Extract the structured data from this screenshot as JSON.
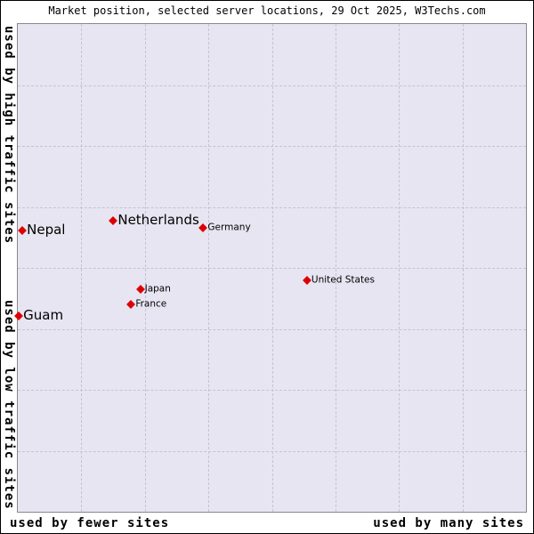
{
  "colors": {
    "plot_bg": "#e8e5f2",
    "grid": "#c6c2d4",
    "marker": "#dd0000",
    "border": "#888888"
  },
  "chart_data": {
    "type": "scatter",
    "title": "Market position, selected server locations, 29 Oct 2025, W3Techs.com",
    "x_axis": {
      "left_label": "used by fewer sites",
      "right_label": "used by many sites"
    },
    "y_axis": {
      "top_label": "used by high traffic sites",
      "bottom_label": "used by low traffic sites"
    },
    "grid": {
      "v_lines": 7,
      "h_lines": 7,
      "style": "dashed"
    },
    "units": "x_pct/y_pct are percent of plot area measured from top-left; axes are qualitative (no numeric scale shown)",
    "points": [
      {
        "label": "Nepal",
        "x_pct": 0.9,
        "y_pct": 42.4,
        "label_size": "large"
      },
      {
        "label": "Netherlands",
        "x_pct": 18.8,
        "y_pct": 40.4,
        "label_size": "large"
      },
      {
        "label": "Germany",
        "x_pct": 36.5,
        "y_pct": 41.8,
        "label_size": "small"
      },
      {
        "label": "Japan",
        "x_pct": 24.1,
        "y_pct": 54.4,
        "label_size": "small"
      },
      {
        "label": "France",
        "x_pct": 22.3,
        "y_pct": 57.5,
        "label_size": "small"
      },
      {
        "label": "United States",
        "x_pct": 56.9,
        "y_pct": 52.5,
        "label_size": "small"
      },
      {
        "label": "Guam",
        "x_pct": 0.2,
        "y_pct": 59.8,
        "label_size": "large"
      }
    ]
  }
}
